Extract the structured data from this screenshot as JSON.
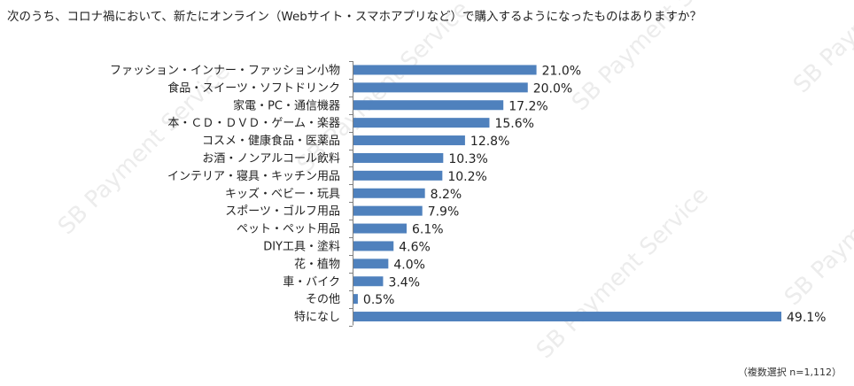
{
  "title": "次のうち、コロナ禍において、新たにオンライン（Webサイト・スマホアプリなど）で購入するようになったものはありますか？",
  "note": "（複数選択 n=1,112）",
  "watermark": "SB Payment Service",
  "colors": {
    "bar": "#4f81bd",
    "axis": "#7f7f7f",
    "text": "#222222"
  },
  "chart_data": {
    "type": "bar",
    "orientation": "horizontal",
    "categories": [
      "ファッション・インナー・ファッション小物",
      "食品・スイーツ・ソフトドリンク",
      "家電・PC・通信機器",
      "本・ＣＤ・ＤＶＤ・ゲーム・楽器",
      "コスメ・健康食品・医薬品",
      "お酒・ノンアルコール飲料",
      "インテリア・寝具・キッチン用品",
      "キッズ・ベビー・玩具",
      "スポーツ・ゴルフ用品",
      "ペット・ペット用品",
      "DIY工具・塗料",
      "花・植物",
      "車・バイク",
      "その他",
      "特になし"
    ],
    "values": [
      21.0,
      20.0,
      17.2,
      15.6,
      12.8,
      10.3,
      10.2,
      8.2,
      7.9,
      6.1,
      4.6,
      4.0,
      3.4,
      0.5,
      49.1
    ],
    "labels": [
      "21.0%",
      "20.0%",
      "17.2%",
      "15.6%",
      "12.8%",
      "10.3%",
      "10.2%",
      "8.2%",
      "7.9%",
      "6.1%",
      "4.6%",
      "4.0%",
      "3.4%",
      "0.5%",
      "49.1%"
    ],
    "xlim": [
      0,
      50
    ],
    "grid": false
  }
}
